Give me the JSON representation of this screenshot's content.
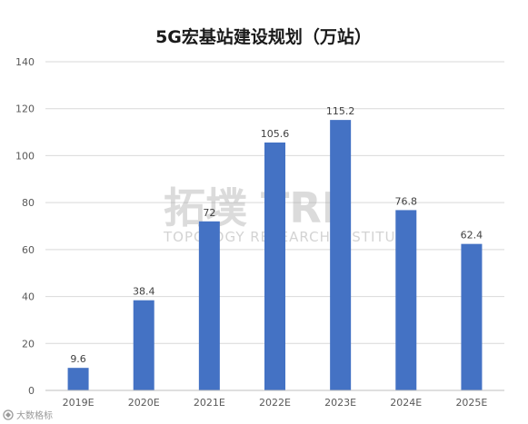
{
  "chart_data": {
    "type": "bar",
    "title": "5G宏基站建设规划（万站）",
    "categories": [
      "2019E",
      "2020E",
      "2021E",
      "2022E",
      "2023E",
      "2024E",
      "2025E"
    ],
    "values": [
      9.6,
      38.4,
      72,
      105.6,
      115.2,
      76.8,
      62.4
    ],
    "data_labels": [
      "9.6",
      "38.4",
      "72",
      "105.6",
      "115.2",
      "76.8",
      "62.4"
    ],
    "yticks": [
      0,
      20,
      40,
      60,
      80,
      100,
      120,
      140
    ],
    "ylim": [
      0,
      140
    ],
    "xlabel": "",
    "ylabel": "",
    "grid": true,
    "legend": "none",
    "bar_color": "#4472C4"
  },
  "watermark": {
    "cn": "拓墣",
    "latin": "TRI",
    "en": "TOPOLOGY RESEARCH INSTITUTE",
    "accent_color": "#c0506a"
  },
  "source_mark": {
    "text": "大数格标",
    "icon": "brand-logo-icon"
  }
}
